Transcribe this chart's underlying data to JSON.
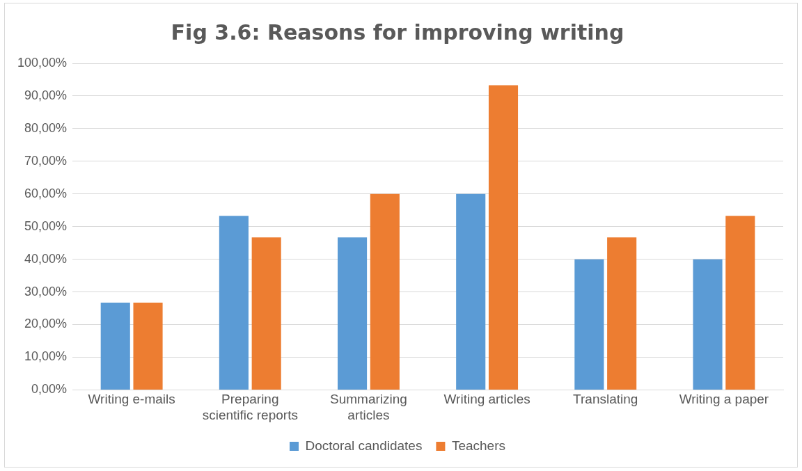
{
  "chart_data": {
    "type": "bar",
    "title": "Fig 3.6: Reasons for improving writing",
    "categories": [
      "Writing e-mails",
      "Preparing scientific reports",
      "Summarizing articles",
      "Writing articles",
      "Translating",
      "Writing a paper"
    ],
    "series": [
      {
        "name": "Doctoral candidates",
        "color": "#5b9bd5",
        "values": [
          26.7,
          53.3,
          46.7,
          60,
          40,
          40
        ]
      },
      {
        "name": "Teachers",
        "color": "#ed7d31",
        "values": [
          26.7,
          46.7,
          60,
          93.3,
          46.7,
          53.3
        ]
      }
    ],
    "ylim": [
      0,
      100
    ],
    "yticks": [
      {
        "value": 0,
        "label": "0,00%"
      },
      {
        "value": 10,
        "label": "10,00%"
      },
      {
        "value": 20,
        "label": "20,00%"
      },
      {
        "value": 30,
        "label": "30,00%"
      },
      {
        "value": 40,
        "label": "40,00%"
      },
      {
        "value": 50,
        "label": "50,00%"
      },
      {
        "value": 60,
        "label": "60,00%"
      },
      {
        "value": 70,
        "label": "70,00%"
      },
      {
        "value": 80,
        "label": "80,00%"
      },
      {
        "value": 90,
        "label": "90,00%"
      },
      {
        "value": 100,
        "label": "100,00%"
      }
    ],
    "grid": "y",
    "legend": "bottom"
  }
}
